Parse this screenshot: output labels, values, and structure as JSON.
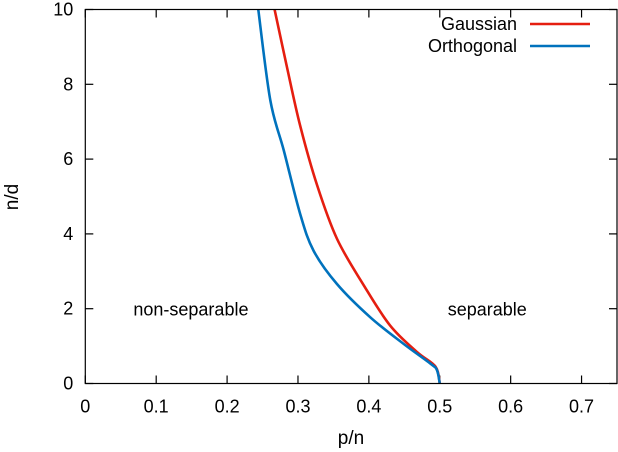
{
  "chart_data": {
    "type": "line",
    "title": "",
    "xlabel": "p/n",
    "ylabel": "n/d",
    "xlim": [
      0,
      0.75
    ],
    "ylim": [
      0,
      10
    ],
    "xticks": [
      0,
      0.1,
      0.2,
      0.3,
      0.4,
      0.5,
      0.6,
      0.7
    ],
    "xtick_labels": [
      "0",
      "0.1",
      "0.2",
      "0.3",
      "0.4",
      "0.5",
      "0.6",
      "0.7"
    ],
    "yticks": [
      0,
      2,
      4,
      6,
      8,
      10
    ],
    "ytick_labels": [
      "0",
      "2",
      "4",
      "6",
      "8",
      "10"
    ],
    "grid": false,
    "legend": "top-right",
    "series": [
      {
        "name": "Gaussian",
        "color": "#e51e10",
        "x": [
          0.267,
          0.284,
          0.303,
          0.327,
          0.355,
          0.393,
          0.43,
          0.468,
          0.494,
          0.5
        ],
        "y": [
          10,
          8.5,
          6.9,
          5.3,
          3.87,
          2.62,
          1.55,
          0.84,
          0.45,
          0
        ]
      },
      {
        "name": "Orthogonal",
        "color": "#0072bd",
        "x": [
          0.244,
          0.261,
          0.28,
          0.303,
          0.322,
          0.355,
          0.402,
          0.449,
          0.487,
          0.496,
          0.5
        ],
        "y": [
          10,
          7.57,
          6.23,
          4.54,
          3.55,
          2.66,
          1.77,
          1.06,
          0.53,
          0.36,
          0
        ]
      }
    ],
    "annotations": [
      {
        "text": "non-separable",
        "x": 0.149,
        "y": 2
      },
      {
        "text": "separable",
        "x": 0.567,
        "y": 2
      }
    ]
  }
}
